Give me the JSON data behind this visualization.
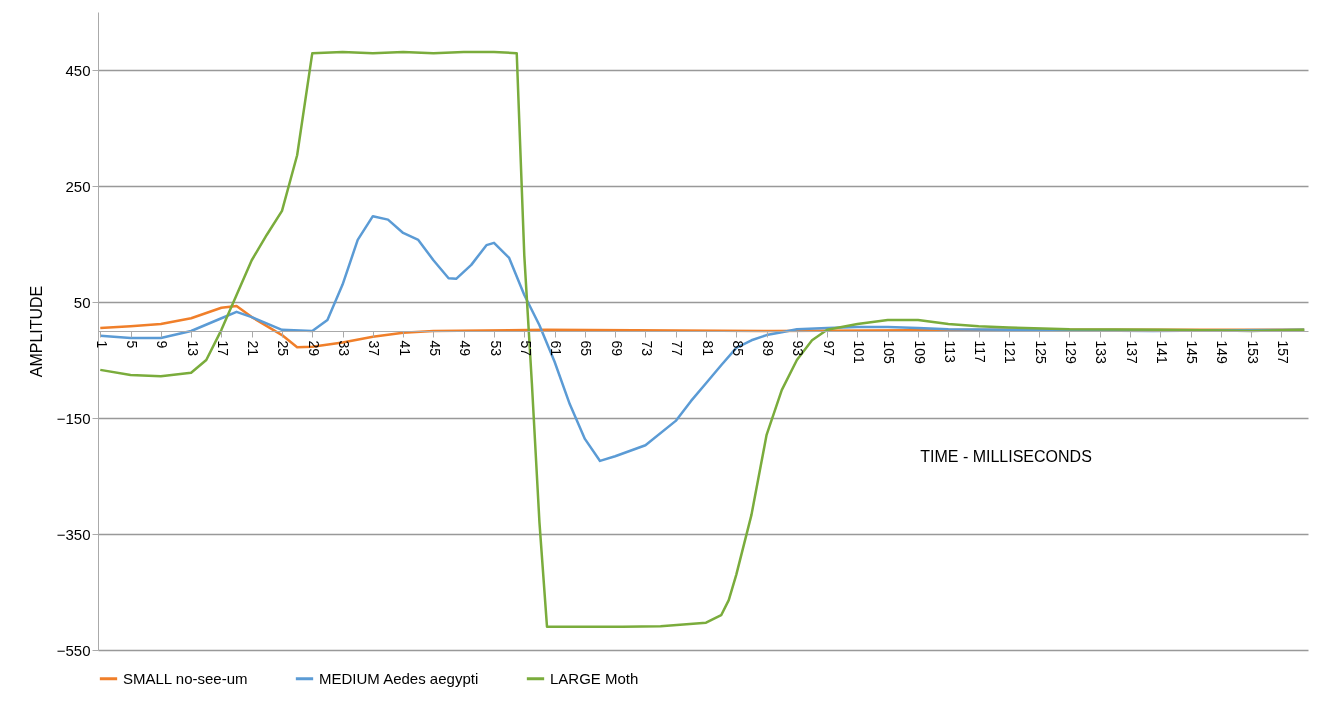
{
  "chart_data": {
    "type": "line",
    "ylabel": "AMPLITUDE",
    "xlabel": "TIME - MILLISECONDS",
    "xlim": [
      0.7,
      160.5
    ],
    "xticks": [
      1,
      5,
      9,
      13,
      17,
      21,
      25,
      29,
      33,
      37,
      41,
      45,
      49,
      53,
      57,
      61,
      65,
      69,
      73,
      77,
      81,
      85,
      89,
      93,
      97,
      101,
      105,
      109,
      113,
      117,
      121,
      125,
      129,
      133,
      137,
      141,
      145,
      149,
      153,
      157
    ],
    "ylim": [
      -550,
      550
    ],
    "yticks": [
      -550,
      -350,
      -150,
      50,
      250,
      450
    ],
    "grid": "y",
    "legend": "bottom",
    "line_style": "solid",
    "series": [
      {
        "name": "SMALL no-see-um",
        "color": "#f07f2a",
        "x": [
          1,
          5,
          9,
          13,
          17,
          19,
          21,
          25,
          27,
          29,
          33,
          37,
          41,
          45,
          60,
          90,
          120,
          160
        ],
        "values": [
          5,
          8,
          12,
          22,
          40,
          43,
          24,
          -7,
          -28,
          -27,
          -20,
          -10,
          -3,
          0,
          2,
          0,
          2,
          2
        ]
      },
      {
        "name": "MEDIUM Aedes aegypti",
        "color": "#5b9bd5",
        "x": [
          1,
          5,
          9,
          13,
          17,
          19,
          21,
          25,
          29,
          31,
          33,
          35,
          37,
          39,
          41,
          43,
          45,
          47,
          48,
          50,
          52,
          53,
          55,
          57,
          59,
          61,
          63,
          65,
          67,
          69,
          73,
          77,
          79,
          81,
          83,
          85,
          87,
          89,
          91,
          93,
          97,
          101,
          105,
          109,
          113,
          121,
          140,
          160
        ],
        "values": [
          -8,
          -12,
          -12,
          0,
          22,
          33,
          24,
          2,
          0,
          19,
          80,
          157,
          198,
          192,
          169,
          157,
          122,
          91,
          90,
          114,
          148,
          152,
          126,
          62,
          10,
          -53,
          -126,
          -186,
          -224,
          -216,
          -197,
          -155,
          -121,
          -90,
          -59,
          -29,
          -16,
          -7,
          -2,
          3,
          5,
          7,
          7,
          5,
          3,
          2,
          0,
          2
        ]
      },
      {
        "name": "LARGE Moth",
        "color": "#7aac3c",
        "x": [
          1,
          5,
          9,
          13,
          15,
          17,
          19,
          21,
          23,
          25,
          27,
          29,
          33,
          37,
          41,
          45,
          49,
          53,
          56,
          57,
          58,
          59,
          60,
          65,
          70,
          75,
          81,
          83,
          84,
          85,
          87,
          89,
          91,
          93,
          95,
          97,
          101,
          105,
          109,
          113,
          117,
          121,
          129,
          141,
          149,
          153,
          160
        ],
        "values": [
          -67,
          -76,
          -78,
          -72,
          -50,
          2,
          62,
          122,
          166,
          207,
          303,
          479,
          481,
          479,
          481,
          479,
          481,
          481,
          479,
          130,
          -90,
          -330,
          -510,
          -510,
          -510,
          -509,
          -503,
          -490,
          -464,
          -420,
          -317,
          -179,
          -102,
          -50,
          -16,
          2,
          12,
          19,
          19,
          12,
          8,
          6,
          3,
          2,
          1,
          0,
          2
        ]
      }
    ]
  }
}
